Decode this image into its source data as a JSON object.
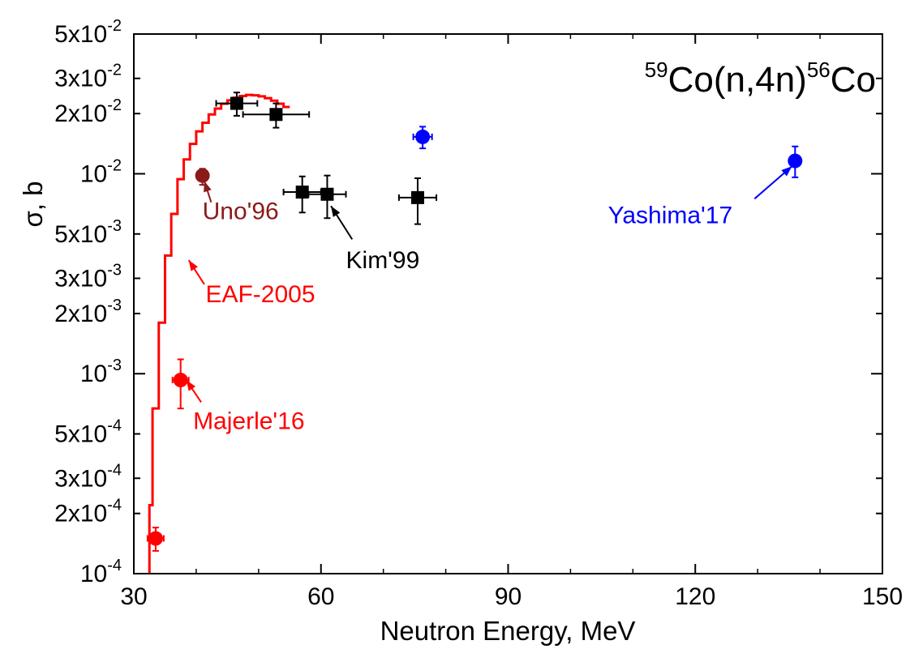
{
  "chart_data": {
    "type": "scatter",
    "title": {
      "pre_sup": "59",
      "main": "Co(n,4n)",
      "mid_sup": "56",
      "post": "Co"
    },
    "xlabel": "Neutron Energy,  MeV",
    "ylabel": "σ, b",
    "xlim": [
      30,
      150
    ],
    "ylim": [
      0.0001,
      0.05
    ],
    "y_scale": "log",
    "x_ticks": [
      30,
      60,
      90,
      120,
      150
    ],
    "x_tick_labels": [
      "30",
      "60",
      "90",
      "120",
      "150"
    ],
    "y_ticks": [
      {
        "value": 0.05,
        "mant": "5x10",
        "exp": "-2"
      },
      {
        "value": 0.03,
        "mant": "3x10",
        "exp": "-2"
      },
      {
        "value": 0.02,
        "mant": "2x10",
        "exp": "-2"
      },
      {
        "value": 0.01,
        "mant": "10",
        "exp": "-2"
      },
      {
        "value": 0.005,
        "mant": "5x10",
        "exp": "-3"
      },
      {
        "value": 0.003,
        "mant": "3x10",
        "exp": "-3"
      },
      {
        "value": 0.002,
        "mant": "2x10",
        "exp": "-3"
      },
      {
        "value": 0.001,
        "mant": "10",
        "exp": "-3"
      },
      {
        "value": 0.0005,
        "mant": "5x10",
        "exp": "-4"
      },
      {
        "value": 0.0003,
        "mant": "3x10",
        "exp": "-4"
      },
      {
        "value": 0.0002,
        "mant": "2x10",
        "exp": "-4"
      },
      {
        "value": 0.0001,
        "mant": "10",
        "exp": "-4"
      }
    ],
    "grid": false,
    "legend": "none",
    "series": [
      {
        "label": "EAF-2005",
        "type": "step",
        "color": "#ff0000",
        "x": [
          33,
          34,
          35,
          36,
          37,
          38,
          39,
          40,
          41,
          42,
          43,
          44,
          45,
          46,
          47,
          48,
          49,
          50,
          51,
          52,
          53,
          54,
          55
        ],
        "y": [
          0.00022,
          0.00067,
          0.0018,
          0.0039,
          0.0063,
          0.0094,
          0.0118,
          0.0141,
          0.0163,
          0.018,
          0.0198,
          0.0212,
          0.0224,
          0.0233,
          0.024,
          0.0245,
          0.0248,
          0.0247,
          0.0244,
          0.0239,
          0.0232,
          0.0224,
          0.0216
        ],
        "x_start": 32.5,
        "y_start": 0.0001
      },
      {
        "label": "Majerle'16",
        "type": "points",
        "marker": "circle",
        "color": "#ff0000",
        "points": [
          {
            "x": 33.5,
            "y": 0.00015,
            "xerr": 1.3,
            "ylo": 0.00013,
            "yhi": 0.00017
          },
          {
            "x": 37.5,
            "y": 0.00093,
            "xerr": 1.3,
            "ylo": 0.00067,
            "yhi": 0.00118
          }
        ]
      },
      {
        "label": "Uno'96",
        "type": "points",
        "marker": "circle",
        "color": "#8b1a1a",
        "points": [
          {
            "x": 41.0,
            "y": 0.0098,
            "xerr": 0.5,
            "ylo": 0.0088,
            "yhi": 0.0106
          }
        ]
      },
      {
        "label": "Kim'99",
        "type": "points",
        "marker": "square",
        "color": "#000000",
        "points": [
          {
            "x": 46.5,
            "y": 0.0225,
            "xerr": 3.3,
            "ylo": 0.0195,
            "yhi": 0.0255
          },
          {
            "x": 52.8,
            "y": 0.0198,
            "xerr": 5.3,
            "ylo": 0.017,
            "yhi": 0.0225
          },
          {
            "x": 57.0,
            "y": 0.0081,
            "xerr": 3.0,
            "ylo": 0.0064,
            "yhi": 0.0097
          },
          {
            "x": 61.0,
            "y": 0.0079,
            "xerr": 3.0,
            "ylo": 0.006,
            "yhi": 0.0098
          },
          {
            "x": 75.5,
            "y": 0.0076,
            "xerr": 3.0,
            "ylo": 0.0056,
            "yhi": 0.0095
          }
        ]
      },
      {
        "label": "Yashima'17",
        "type": "points",
        "marker": "circle",
        "color": "#0000ff",
        "points": [
          {
            "x": 76.3,
            "y": 0.0153,
            "xerr": 1.5,
            "ylo": 0.0134,
            "yhi": 0.0172
          },
          {
            "x": 136.0,
            "y": 0.0116,
            "xerr": 0.4,
            "ylo": 0.0096,
            "yhi": 0.0137
          }
        ]
      }
    ],
    "annotations": [
      {
        "text": "Uno'96",
        "color": "#8b1a1a",
        "text_x": 41.0,
        "text_y": 0.0065,
        "arrow_from": [
          42.4,
          0.0072
        ],
        "arrow_to": [
          41.3,
          0.0092
        ]
      },
      {
        "text": "EAF-2005",
        "color": "#ff0000",
        "text_x": 41.5,
        "text_y": 0.0025,
        "arrow_from": [
          41.3,
          0.0028
        ],
        "arrow_to": [
          38.8,
          0.0037
        ]
      },
      {
        "text": "Majerle'16",
        "color": "#ff0000",
        "text_x": 39.5,
        "text_y": 0.00058,
        "arrow_from": [
          40.8,
          0.00072
        ],
        "arrow_to": [
          38.4,
          0.00093
        ]
      },
      {
        "text": "Kim'99",
        "color": "#000000",
        "text_x": 64.0,
        "text_y": 0.0037,
        "arrow_from": [
          65.0,
          0.0047
        ],
        "arrow_to": [
          61.6,
          0.0069
        ]
      },
      {
        "text": "Yashima'17",
        "color": "#0000ff",
        "text_x": 106.0,
        "text_y": 0.0062,
        "arrow_from": [
          129.5,
          0.0075
        ],
        "arrow_to": [
          135.5,
          0.0109
        ]
      }
    ]
  }
}
